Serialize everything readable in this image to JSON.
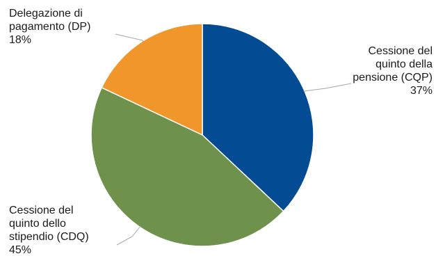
{
  "chart_data": {
    "type": "pie",
    "slices": [
      {
        "label_lines": [
          "Cessione del",
          "quinto della",
          "pensione (CQP)"
        ],
        "value": 37,
        "pct_label": "37%",
        "color": "#034c93"
      },
      {
        "label_lines": [
          "Cessione del",
          "quinto dello",
          "stipendio (CDQ)"
        ],
        "value": 45,
        "pct_label": "45%",
        "color": "#6e924c"
      },
      {
        "label_lines": [
          "Delegazione di",
          "pagamento (DP)"
        ],
        "value": 18,
        "pct_label": "18%",
        "color": "#f0962a"
      }
    ]
  }
}
